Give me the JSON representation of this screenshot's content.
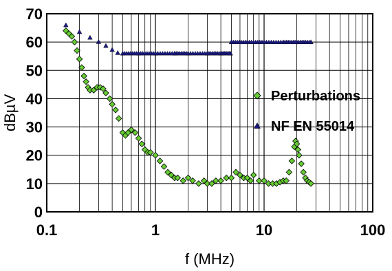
{
  "chart_data": {
    "type": "scatter",
    "xlabel": "f (MHz)",
    "ylabel": "dBµV",
    "x_scale": "log",
    "xlim": [
      0.1,
      100
    ],
    "ylim": [
      0,
      70
    ],
    "x_ticks": [
      0.1,
      1,
      10,
      100
    ],
    "x_tick_labels": [
      "0.1",
      "1",
      "10",
      "100"
    ],
    "y_ticks": [
      0,
      10,
      20,
      30,
      40,
      50,
      60,
      70
    ],
    "y_tick_labels": [
      "0",
      "10",
      "20",
      "30",
      "40",
      "50",
      "60",
      "70"
    ],
    "grid": true,
    "legend_position": "right",
    "colors": {
      "perturbations": "#66cc33",
      "limit": "#1a1a80",
      "marker_edge": "#000000"
    },
    "series": [
      {
        "name": "Perturbations",
        "marker": "diamond",
        "points": [
          [
            0.15,
            64
          ],
          [
            0.16,
            63
          ],
          [
            0.17,
            62
          ],
          [
            0.18,
            60
          ],
          [
            0.19,
            57
          ],
          [
            0.2,
            54
          ],
          [
            0.21,
            51
          ],
          [
            0.22,
            48
          ],
          [
            0.23,
            46
          ],
          [
            0.24,
            44
          ],
          [
            0.25,
            43
          ],
          [
            0.27,
            43
          ],
          [
            0.29,
            44
          ],
          [
            0.31,
            44
          ],
          [
            0.33,
            43.5
          ],
          [
            0.35,
            42
          ],
          [
            0.38,
            40
          ],
          [
            0.4,
            38
          ],
          [
            0.43,
            36
          ],
          [
            0.46,
            33
          ],
          [
            0.5,
            28
          ],
          [
            0.53,
            27
          ],
          [
            0.56,
            28
          ],
          [
            0.6,
            29
          ],
          [
            0.65,
            28
          ],
          [
            0.7,
            26
          ],
          [
            0.75,
            24
          ],
          [
            0.8,
            22
          ],
          [
            0.85,
            21
          ],
          [
            0.9,
            21
          ],
          [
            1.0,
            20
          ],
          [
            1.1,
            18
          ],
          [
            1.2,
            16
          ],
          [
            1.3,
            14
          ],
          [
            1.4,
            13
          ],
          [
            1.5,
            12
          ],
          [
            1.6,
            12
          ],
          [
            1.8,
            11
          ],
          [
            2.0,
            12
          ],
          [
            2.2,
            11
          ],
          [
            2.5,
            10
          ],
          [
            2.8,
            11
          ],
          [
            3.0,
            10
          ],
          [
            3.3,
            10
          ],
          [
            3.6,
            11
          ],
          [
            4.0,
            11
          ],
          [
            4.5,
            12
          ],
          [
            5.0,
            12
          ],
          [
            5.5,
            14
          ],
          [
            6.0,
            13
          ],
          [
            6.5,
            12
          ],
          [
            7.0,
            12
          ],
          [
            7.5,
            11
          ],
          [
            8.0,
            13
          ],
          [
            9.0,
            11
          ],
          [
            10,
            11
          ],
          [
            11,
            10
          ],
          [
            12,
            10
          ],
          [
            13,
            10
          ],
          [
            14,
            10.5
          ],
          [
            15,
            11
          ],
          [
            16,
            11
          ],
          [
            17,
            14
          ],
          [
            18,
            18
          ],
          [
            19,
            23
          ],
          [
            19.5,
            25
          ],
          [
            20,
            24
          ],
          [
            20.5,
            22
          ],
          [
            21,
            20
          ],
          [
            22,
            17
          ],
          [
            23,
            14
          ],
          [
            24,
            12
          ],
          [
            25,
            11
          ],
          [
            26,
            10.5
          ],
          [
            27,
            10
          ]
        ]
      },
      {
        "name": "NF EN 55014",
        "marker": "triangle",
        "points": [
          [
            0.15,
            66
          ],
          [
            0.2,
            63.6
          ],
          [
            0.25,
            61.6
          ],
          [
            0.3,
            60.1
          ],
          [
            0.35,
            58.7
          ],
          [
            0.4,
            57.3
          ],
          [
            0.45,
            56.2
          ],
          [
            0.5,
            56
          ],
          [
            0.7,
            56
          ],
          [
            1.0,
            56
          ],
          [
            1.5,
            56
          ],
          [
            2.0,
            56
          ],
          [
            3.0,
            56
          ],
          [
            4.0,
            56
          ],
          [
            4.9,
            56
          ],
          [
            5.0,
            60
          ],
          [
            7.0,
            60
          ],
          [
            10,
            60
          ],
          [
            15,
            60
          ],
          [
            20,
            60
          ],
          [
            27,
            60
          ]
        ]
      }
    ]
  }
}
